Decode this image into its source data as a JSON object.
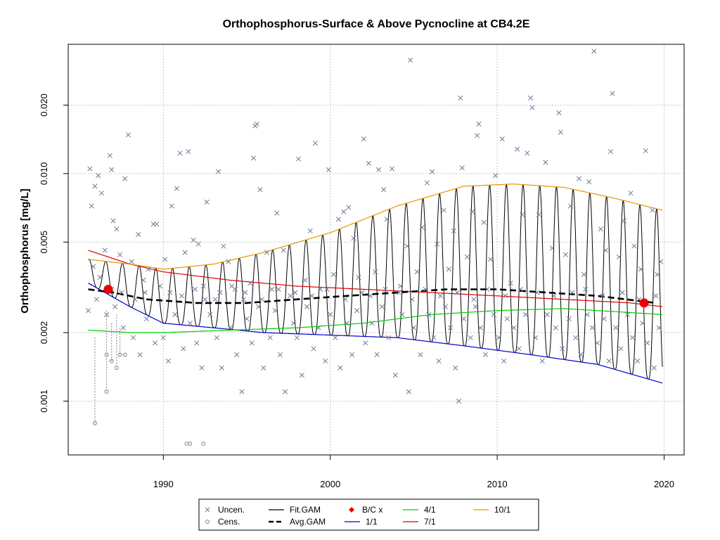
{
  "chart_data": {
    "type": "line",
    "title": "Orthophosphorus-Surface & Above Pycnocline at CB4.2E",
    "xlabel": "",
    "ylabel": "Orthophosphorus [mg/L]",
    "xlim": [
      1984.3,
      2021.2
    ],
    "ylim": [
      0.00058,
      0.037
    ],
    "ylog": true,
    "grid": true,
    "x_ticks": [
      1990,
      2000,
      2010,
      2020
    ],
    "x_tick_labels": [
      "1990",
      "2000",
      "2010",
      "2020"
    ],
    "y_ticks": [
      0.001,
      0.002,
      0.005,
      0.01,
      0.02
    ],
    "y_tick_labels": [
      "0.001",
      "0.002",
      "0.005",
      "0.010",
      "0.020"
    ],
    "series": [
      {
        "name": "Fit.GAM",
        "color": "#000000",
        "style": "seasonal-line"
      },
      {
        "name": "Avg.GAM",
        "color": "#000000",
        "style": "dashed"
      },
      {
        "name": "1/1",
        "color": "#0000cc",
        "style": "line",
        "x": [
          1985.5,
          1988,
          1990,
          1993,
          1996,
          2000,
          2004,
          2008,
          2012,
          2016,
          2019.9
        ],
        "y": [
          0.0033,
          0.0026,
          0.0022,
          0.0021,
          0.002,
          0.00195,
          0.0019,
          0.00175,
          0.0016,
          0.00145,
          0.0012
        ]
      },
      {
        "name": "4/1",
        "color": "#00cc00",
        "style": "line",
        "x": [
          1985.5,
          1988,
          1990,
          1994,
          1998,
          2002,
          2006,
          2010,
          2014,
          2018,
          2019.9
        ],
        "y": [
          0.00205,
          0.002,
          0.002,
          0.00205,
          0.0021,
          0.0022,
          0.0024,
          0.0025,
          0.00255,
          0.00245,
          0.0024
        ]
      },
      {
        "name": "7/1",
        "color": "#dd0000",
        "style": "line",
        "x": [
          1985.5,
          1988,
          1990,
          1994,
          1998,
          2002,
          2006,
          2010,
          2014,
          2018,
          2019.9
        ],
        "y": [
          0.0046,
          0.004,
          0.0037,
          0.0034,
          0.0032,
          0.0031,
          0.003,
          0.0029,
          0.0028,
          0.0027,
          0.0026
        ]
      },
      {
        "name": "10/1",
        "color": "#e69500",
        "style": "line",
        "x": [
          1985.5,
          1988,
          1990,
          1993,
          1996,
          2000,
          2004,
          2008,
          2011,
          2014,
          2017,
          2019.9
        ],
        "y": [
          0.0042,
          0.004,
          0.0038,
          0.004,
          0.0045,
          0.0055,
          0.0072,
          0.0088,
          0.009,
          0.0087,
          0.0078,
          0.0069
        ]
      }
    ],
    "avg_gam": {
      "x": [
        1985.5,
        1987,
        1989,
        1992,
        1995,
        1998,
        2001,
        2004,
        2007,
        2010,
        2013,
        2016,
        2019.5
      ],
      "y": [
        0.0031,
        0.003,
        0.0028,
        0.0027,
        0.0027,
        0.0028,
        0.0029,
        0.003,
        0.0031,
        0.0031,
        0.003,
        0.0029,
        0.0027
      ]
    },
    "bc_points": {
      "name": "B/C x",
      "color": "#ee0000",
      "x": [
        1986.7,
        2018.8
      ],
      "y": [
        0.0031,
        0.0027
      ]
    },
    "uncensored": {
      "name": "Uncen.",
      "color": "#6b7a99",
      "points": [
        [
          1985.6,
          0.0105
        ],
        [
          1985.7,
          0.0072
        ],
        [
          1985.9,
          0.0088
        ],
        [
          1986.1,
          0.0098
        ],
        [
          1986.3,
          0.0082
        ],
        [
          1986.5,
          0.0046
        ],
        [
          1986.8,
          0.012
        ],
        [
          1986.9,
          0.0104
        ],
        [
          1987.0,
          0.0062
        ],
        [
          1987.2,
          0.0057
        ],
        [
          1987.4,
          0.0044
        ],
        [
          1987.7,
          0.0095
        ],
        [
          1987.9,
          0.0148
        ],
        [
          1988.1,
          0.0041
        ],
        [
          1988.5,
          0.0054
        ],
        [
          1988.8,
          0.0034
        ],
        [
          1989.1,
          0.0038
        ],
        [
          1989.4,
          0.006
        ],
        [
          1989.6,
          0.006
        ],
        [
          1990.1,
          0.0042
        ],
        [
          1990.5,
          0.0072
        ],
        [
          1990.8,
          0.0086
        ],
        [
          1991.0,
          0.0123
        ],
        [
          1991.3,
          0.0045
        ],
        [
          1991.5,
          0.0125
        ],
        [
          1991.8,
          0.0051
        ],
        [
          1992.1,
          0.0049
        ],
        [
          1992.4,
          0.0032
        ],
        [
          1992.6,
          0.0075
        ],
        [
          1993.1,
          0.0028
        ],
        [
          1993.3,
          0.0102
        ],
        [
          1993.6,
          0.0048
        ],
        [
          1993.9,
          0.0041
        ],
        [
          1994.3,
          0.0031
        ],
        [
          1994.8,
          0.0028
        ],
        [
          1995.2,
          0.0033
        ],
        [
          1995.4,
          0.0117
        ],
        [
          1995.5,
          0.0162
        ],
        [
          1995.6,
          0.0165
        ],
        [
          1995.8,
          0.0085
        ],
        [
          1996.2,
          0.0045
        ],
        [
          1996.5,
          0.0031
        ],
        [
          1996.8,
          0.0067
        ],
        [
          1997.2,
          0.0046
        ],
        [
          1997.6,
          0.0029
        ],
        [
          1998.1,
          0.0116
        ],
        [
          1998.5,
          0.0034
        ],
        [
          1998.8,
          0.0056
        ],
        [
          1999.1,
          0.0136
        ],
        [
          1999.4,
          0.0031
        ],
        [
          1999.9,
          0.0104
        ],
        [
          2000.2,
          0.0036
        ],
        [
          2000.5,
          0.0063
        ],
        [
          2000.8,
          0.0068
        ],
        [
          2001.1,
          0.0071
        ],
        [
          2001.4,
          0.0052
        ],
        [
          2001.7,
          0.0035
        ],
        [
          2002.0,
          0.0142
        ],
        [
          2002.3,
          0.0111
        ],
        [
          2002.7,
          0.0037
        ],
        [
          2002.9,
          0.0104
        ],
        [
          2003.2,
          0.0085
        ],
        [
          2003.4,
          0.0063
        ],
        [
          2003.7,
          0.0105
        ],
        [
          2004.2,
          0.0032
        ],
        [
          2004.6,
          0.0048
        ],
        [
          2004.8,
          0.0315
        ],
        [
          2005.2,
          0.0037
        ],
        [
          2005.5,
          0.0058
        ],
        [
          2005.8,
          0.0091
        ],
        [
          2006.1,
          0.0102
        ],
        [
          2006.4,
          0.0049
        ],
        [
          2006.8,
          0.0069
        ],
        [
          2007.1,
          0.0038
        ],
        [
          2007.4,
          0.0056
        ],
        [
          2007.8,
          0.0215
        ],
        [
          2007.9,
          0.0106
        ],
        [
          2008.2,
          0.0043
        ],
        [
          2008.5,
          0.0068
        ],
        [
          2008.8,
          0.0147
        ],
        [
          2008.9,
          0.0165
        ],
        [
          2009.2,
          0.0061
        ],
        [
          2009.6,
          0.0042
        ],
        [
          2009.9,
          0.0098
        ],
        [
          2010.3,
          0.0142
        ],
        [
          2010.8,
          0.0033
        ],
        [
          2011.2,
          0.0128
        ],
        [
          2011.5,
          0.0066
        ],
        [
          2011.8,
          0.0123
        ],
        [
          2012.0,
          0.0215
        ],
        [
          2012.1,
          0.0195
        ],
        [
          2012.5,
          0.0066
        ],
        [
          2012.9,
          0.0112
        ],
        [
          2013.3,
          0.0047
        ],
        [
          2013.7,
          0.0185
        ],
        [
          2013.8,
          0.0152
        ],
        [
          2014.1,
          0.0044
        ],
        [
          2014.4,
          0.0072
        ],
        [
          2014.9,
          0.0095
        ],
        [
          2015.2,
          0.0036
        ],
        [
          2015.5,
          0.0092
        ],
        [
          2015.8,
          0.0345
        ],
        [
          2016.2,
          0.0057
        ],
        [
          2016.5,
          0.0046
        ],
        [
          2016.8,
          0.0125
        ],
        [
          2016.9,
          0.0225
        ],
        [
          2017.3,
          0.0043
        ],
        [
          2017.6,
          0.0062
        ],
        [
          2018.0,
          0.0082
        ],
        [
          2018.2,
          0.0048
        ],
        [
          2018.6,
          0.0038
        ],
        [
          2018.9,
          0.0126
        ],
        [
          2019.3,
          0.0069
        ],
        [
          2019.6,
          0.0036
        ],
        [
          2019.8,
          0.0041
        ],
        [
          1985.8,
          0.0039
        ],
        [
          1986.0,
          0.0028
        ],
        [
          1986.6,
          0.0024
        ],
        [
          1987.1,
          0.0026
        ],
        [
          1987.6,
          0.0021
        ],
        [
          1988.2,
          0.0019
        ],
        [
          1988.6,
          0.0016
        ],
        [
          1989.0,
          0.0023
        ],
        [
          1989.5,
          0.0018
        ],
        [
          1990.0,
          0.0019
        ],
        [
          1990.3,
          0.0015
        ],
        [
          1990.7,
          0.0024
        ],
        [
          1991.2,
          0.0017
        ],
        [
          1991.6,
          0.0022
        ],
        [
          1992.0,
          0.0018
        ],
        [
          1992.3,
          0.0014
        ],
        [
          1992.8,
          0.0024
        ],
        [
          1993.2,
          0.0019
        ],
        [
          1993.5,
          0.0014
        ],
        [
          1994.0,
          0.0021
        ],
        [
          1994.4,
          0.0016
        ],
        [
          1994.7,
          0.0011
        ],
        [
          1995.0,
          0.0023
        ],
        [
          1995.3,
          0.0018
        ],
        [
          1995.7,
          0.0026
        ],
        [
          1996.0,
          0.0014
        ],
        [
          1996.4,
          0.0019
        ],
        [
          1996.7,
          0.0025
        ],
        [
          1997.0,
          0.0016
        ],
        [
          1997.3,
          0.0011
        ],
        [
          1997.8,
          0.0022
        ],
        [
          1998.0,
          0.0019
        ],
        [
          1998.3,
          0.0013
        ],
        [
          1998.6,
          0.0026
        ],
        [
          1999.0,
          0.0017
        ],
        [
          1999.3,
          0.0021
        ],
        [
          1999.7,
          0.0015
        ],
        [
          2000.0,
          0.0024
        ],
        [
          2000.3,
          0.0019
        ],
        [
          2000.6,
          0.0014
        ],
        [
          2001.0,
          0.0022
        ],
        [
          2001.3,
          0.0016
        ],
        [
          2001.6,
          0.0025
        ],
        [
          2002.1,
          0.0018
        ],
        [
          2002.5,
          0.0022
        ],
        [
          2002.8,
          0.0016
        ],
        [
          2003.1,
          0.0026
        ],
        [
          2003.5,
          0.0019
        ],
        [
          2003.9,
          0.0013
        ],
        [
          2004.3,
          0.0024
        ],
        [
          2004.7,
          0.0011
        ],
        [
          2005.0,
          0.0021
        ],
        [
          2005.4,
          0.0016
        ],
        [
          2005.9,
          0.0024
        ],
        [
          2006.2,
          0.0019
        ],
        [
          2006.5,
          0.0015
        ],
        [
          2006.9,
          0.0026
        ],
        [
          2007.2,
          0.0021
        ],
        [
          2007.5,
          0.0014
        ],
        [
          2007.7,
          0.001
        ],
        [
          2008.0,
          0.0023
        ],
        [
          2008.4,
          0.0019
        ],
        [
          2008.7,
          0.0026
        ],
        [
          2009.0,
          0.0021
        ],
        [
          2009.3,
          0.0016
        ],
        [
          2009.8,
          0.0024
        ],
        [
          2010.1,
          0.0019
        ],
        [
          2010.4,
          0.0015
        ],
        [
          2010.6,
          0.0023
        ],
        [
          2011.0,
          0.0021
        ],
        [
          2011.3,
          0.0017
        ],
        [
          2011.7,
          0.0024
        ],
        [
          2012.3,
          0.0019
        ],
        [
          2012.7,
          0.0015
        ],
        [
          2013.0,
          0.0024
        ],
        [
          2013.5,
          0.0021
        ],
        [
          2013.9,
          0.0017
        ],
        [
          2014.3,
          0.0023
        ],
        [
          2014.7,
          0.0019
        ],
        [
          2015.0,
          0.0016
        ],
        [
          2015.4,
          0.0024
        ],
        [
          2015.7,
          0.0021
        ],
        [
          2016.0,
          0.0018
        ],
        [
          2016.4,
          0.0023
        ],
        [
          2016.7,
          0.0015
        ],
        [
          2017.1,
          0.0021
        ],
        [
          2017.4,
          0.0017
        ],
        [
          2017.8,
          0.0024
        ],
        [
          2018.1,
          0.0019
        ],
        [
          2018.4,
          0.0015
        ],
        [
          2018.7,
          0.0022
        ],
        [
          2019.0,
          0.0018
        ],
        [
          2019.4,
          0.0014
        ],
        [
          2019.7,
          0.0021
        ],
        [
          1985.5,
          0.0025
        ],
        [
          1986.2,
          0.0035
        ],
        [
          1986.9,
          0.0031
        ],
        [
          1987.5,
          0.003
        ],
        [
          1988.3,
          0.0028
        ],
        [
          1988.9,
          0.003
        ],
        [
          1989.8,
          0.0032
        ],
        [
          1990.4,
          0.003
        ],
        [
          1991.1,
          0.0029
        ],
        [
          1991.9,
          0.0031
        ],
        [
          1992.5,
          0.0028
        ],
        [
          1993.4,
          0.003
        ],
        [
          1994.1,
          0.0032
        ],
        [
          1994.9,
          0.003
        ],
        [
          1995.9,
          0.0028
        ],
        [
          1996.9,
          0.0031
        ],
        [
          1997.9,
          0.003
        ],
        [
          1998.9,
          0.0029
        ],
        [
          1999.8,
          0.0031
        ],
        [
          2000.9,
          0.0028
        ],
        [
          2001.9,
          0.003
        ],
        [
          2002.4,
          0.0029
        ],
        [
          2003.3,
          0.0031
        ],
        [
          2004.1,
          0.003
        ],
        [
          2004.9,
          0.0028
        ],
        [
          2005.7,
          0.0031
        ],
        [
          2006.6,
          0.0029
        ],
        [
          2007.6,
          0.003
        ],
        [
          2008.6,
          0.0028
        ],
        [
          2009.4,
          0.0031
        ],
        [
          2010.5,
          0.0029
        ],
        [
          2011.4,
          0.0031
        ],
        [
          2012.4,
          0.003
        ],
        [
          2013.4,
          0.0029
        ],
        [
          2014.5,
          0.003
        ],
        [
          2015.3,
          0.0031
        ],
        [
          2016.3,
          0.0029
        ],
        [
          2017.5,
          0.003
        ],
        [
          2018.5,
          0.0028
        ],
        [
          2019.5,
          0.0029
        ]
      ]
    },
    "censored": {
      "name": "Cens.",
      "color": "#808080",
      "points": [
        {
          "x": 1985.9,
          "hi": 0.0019,
          "lo": 0.0008
        },
        {
          "x": 1986.6,
          "hi": 0.0025,
          "lo": 0.0011
        },
        {
          "x": 1986.6,
          "hi": 0.0016,
          "lo": 0.0016
        },
        {
          "x": 1986.9,
          "hi": 0.0022,
          "lo": 0.0015
        },
        {
          "x": 1987.2,
          "hi": 0.0024,
          "lo": 0.0014
        },
        {
          "x": 1987.4,
          "hi": 0.0021,
          "lo": 0.0016
        },
        {
          "x": 1987.7,
          "hi": 0.0016,
          "lo": 0.0016
        },
        {
          "x": 1991.4,
          "hi": 0.00065,
          "lo": 0.00065
        },
        {
          "x": 1991.6,
          "hi": 0.00065,
          "lo": 0.00065
        },
        {
          "x": 1992.4,
          "hi": 0.00065,
          "lo": 0.00065
        }
      ]
    }
  },
  "legend": {
    "items": [
      {
        "label": "Uncen.",
        "symbol": "cross",
        "color": "#6b7a99"
      },
      {
        "label": "Fit.GAM",
        "symbol": "line",
        "color": "#000000"
      },
      {
        "label": "B/C x",
        "symbol": "diamond",
        "color": "#ee0000"
      },
      {
        "label": "4/1",
        "symbol": "line",
        "color": "#00cc00"
      },
      {
        "label": "10/1",
        "symbol": "line",
        "color": "#e69500"
      },
      {
        "label": "Cens.",
        "symbol": "circle",
        "color": "#808080"
      },
      {
        "label": "Avg.GAM",
        "symbol": "dashed",
        "color": "#000000"
      },
      {
        "label": "1/1",
        "symbol": "line",
        "color": "#0000cc"
      },
      {
        "label": "7/1",
        "symbol": "line",
        "color": "#dd0000"
      }
    ]
  }
}
